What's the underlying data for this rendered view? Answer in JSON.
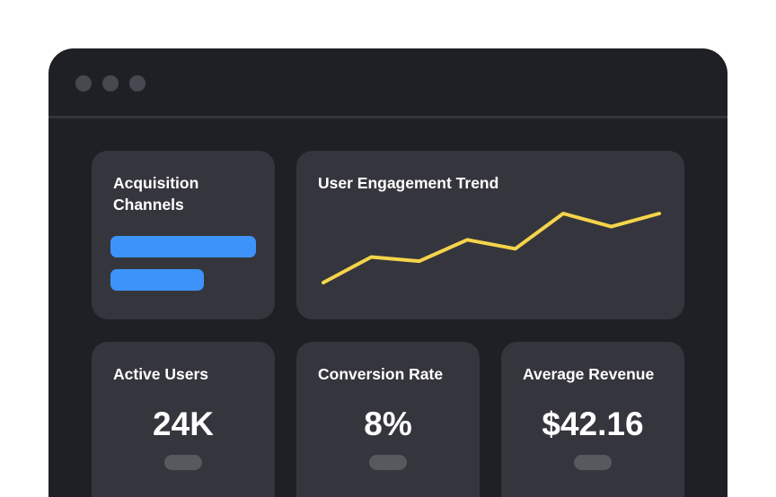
{
  "colors": {
    "page_background": "#ffffff",
    "window_background": "#1f2026",
    "card_background": "#35363d",
    "accent_blue": "#3d93fa",
    "accent_yellow": "#f5d44a",
    "text": "#ffffff",
    "pill": "#57595f"
  },
  "window": {
    "controls": [
      "window-dot",
      "window-dot",
      "window-dot"
    ]
  },
  "acquisition": {
    "title": "Acquisition Channels",
    "bars": [
      {
        "value": 1.0,
        "color": "#3d93fa"
      },
      {
        "value": 0.64,
        "color": "#3d93fa"
      }
    ]
  },
  "engagement": {
    "title": "User Engagement Trend",
    "chart_data": {
      "type": "line",
      "title": "User Engagement Trend",
      "xlabel": "",
      "ylabel": "",
      "grid": false,
      "x": [
        1,
        2,
        3,
        4,
        5,
        6,
        7,
        8
      ],
      "series": [
        {
          "values": [
            0,
            37,
            31,
            62,
            49,
            100,
            81,
            100
          ],
          "color": "#f5d44a"
        }
      ],
      "ylim": [
        0,
        100
      ]
    }
  },
  "metrics": [
    {
      "label": "Active Users",
      "value": "24K"
    },
    {
      "label": "Conversion Rate",
      "value": "8%"
    },
    {
      "label": "Average Revenue",
      "value": "$42.16"
    }
  ]
}
